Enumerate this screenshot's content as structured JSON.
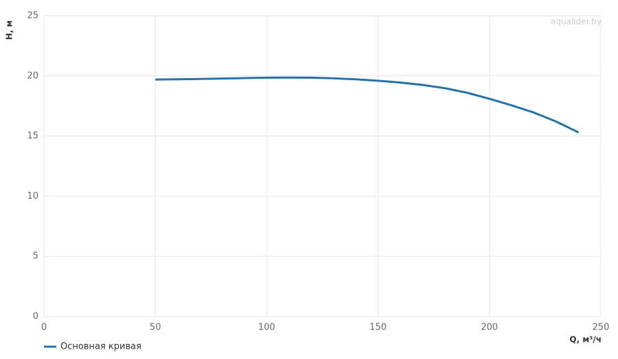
{
  "chart_data": {
    "type": "line",
    "y_label": "H, м",
    "x_label": "Q, м³/ч",
    "watermark": "aqualider.by",
    "x": [
      50,
      60,
      70,
      80,
      90,
      100,
      110,
      120,
      130,
      140,
      150,
      160,
      170,
      180,
      190,
      200,
      210,
      220,
      230,
      240
    ],
    "series": [
      {
        "name": "Основная кривая",
        "color": "#2471a9",
        "values": [
          19.7,
          19.72,
          19.75,
          19.78,
          19.82,
          19.85,
          19.86,
          19.85,
          19.8,
          19.72,
          19.6,
          19.45,
          19.25,
          18.98,
          18.6,
          18.1,
          17.55,
          16.95,
          16.2,
          15.3
        ]
      }
    ],
    "xlim": [
      0,
      250
    ],
    "xticks": [
      0,
      50,
      100,
      150,
      200,
      250
    ],
    "ylim": [
      0,
      25
    ],
    "yticks": [
      0,
      5,
      10,
      15,
      20,
      25
    ],
    "grid": true
  }
}
